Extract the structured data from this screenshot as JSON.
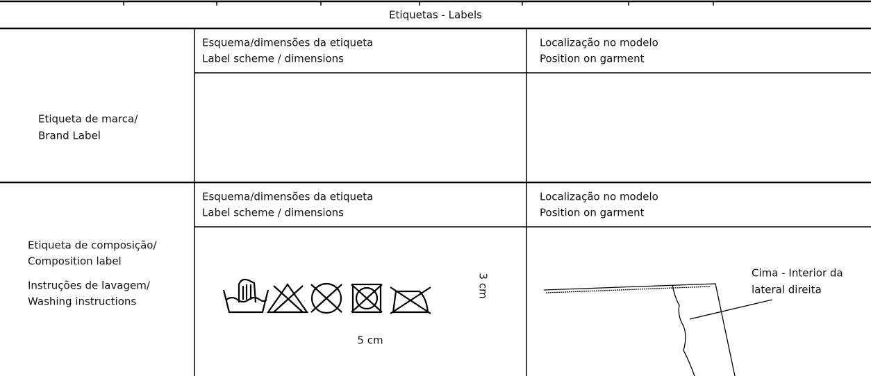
{
  "header": {
    "title": "Etiquetas - Labels"
  },
  "rows": [
    {
      "label": [
        "Etiqueta de marca/",
        "Brand Label"
      ],
      "scheme_header": [
        "Esquema/dimensões da etiqueta",
        "Label scheme / dimensions"
      ],
      "position_header": [
        "Localização no modelo",
        "Position on garment"
      ]
    },
    {
      "label": [
        "Etiqueta de composição/",
        "Composition label",
        "Instruções de lavagem/",
        "Washing instructions"
      ],
      "scheme_header": [
        "Esquema/dimensões da etiqueta",
        "Label scheme / dimensions"
      ],
      "position_header": [
        "Localização no modelo",
        "Position on garment"
      ],
      "scheme": {
        "height": "3 cm",
        "width": "5 cm"
      },
      "position_note": [
        "Cima - Interior da",
        "lateral direita"
      ]
    }
  ]
}
